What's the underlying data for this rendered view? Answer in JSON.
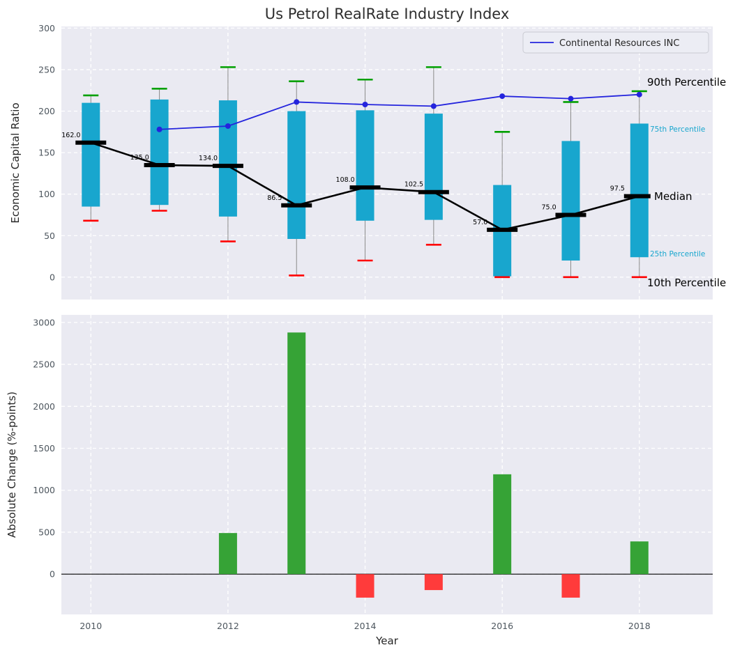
{
  "chart_data": [
    {
      "type": "box-line",
      "title": "Us Petrol RealRate Industry Index",
      "ylabel": "Economic Capital Ratio",
      "ylim": [
        -27,
        302
      ],
      "yticks": [
        0,
        50,
        100,
        150,
        200,
        250,
        300
      ],
      "xlim": [
        2009.57,
        2019.07
      ],
      "grid": true,
      "years": [
        2010,
        2011,
        2012,
        2013,
        2014,
        2015,
        2016,
        2017,
        2018
      ],
      "series": {
        "p90": [
          219,
          227,
          253,
          236,
          238,
          253,
          175,
          211,
          224
        ],
        "p75": [
          210,
          214,
          213,
          200,
          201,
          197,
          111,
          164,
          185
        ],
        "median": [
          162.0,
          135.0,
          134.0,
          86.5,
          108.0,
          102.5,
          57.0,
          75.0,
          97.5
        ],
        "p25": [
          85,
          87,
          73,
          46,
          68,
          69,
          1,
          20,
          24
        ],
        "p10": [
          68,
          80,
          43,
          2,
          20,
          39,
          0,
          0,
          0
        ]
      },
      "median_labels": [
        "162.0",
        "135.0",
        "134.0",
        "86.5",
        "108.0",
        "102.5",
        "57.0",
        "75.0",
        "97.5"
      ],
      "company": {
        "name": "Continental Resources INC",
        "years": [
          2011,
          2012,
          2013,
          2014,
          2015,
          2016,
          2017,
          2018
        ],
        "values": [
          178,
          182,
          211,
          208,
          206,
          218,
          215,
          220
        ]
      },
      "legend": {
        "label": "Continental Resources INC",
        "position": "upper right"
      },
      "annotations": [
        {
          "text": "90th Percentile",
          "color": "#000000",
          "y": 230
        },
        {
          "text": "75th Percentile",
          "color": "#18a6ce",
          "y": 185
        },
        {
          "text": "Median",
          "color": "#000000",
          "y": 97.5
        },
        {
          "text": "25th Percentile",
          "color": "#18a6ce",
          "y": 24
        },
        {
          "text": "10th Percentile",
          "color": "#000000",
          "y": 0
        }
      ],
      "colors": {
        "box": "#18a6ce",
        "cap_high": "#00a000",
        "cap_low": "#ff0000",
        "whisker": "#8a8a8a",
        "median": "#000000",
        "company": "#2424dd",
        "axes_background": "#eaeaf2"
      }
    },
    {
      "type": "bar",
      "ylabel": "Absolute Change (%-points)",
      "xlabel": "Year",
      "ylim": [
        -480,
        3090
      ],
      "yticks": [
        0,
        500,
        1000,
        1500,
        2000,
        2500,
        3000
      ],
      "xticks": [
        2010,
        2012,
        2014,
        2016,
        2018
      ],
      "years": [
        2010,
        2011,
        2012,
        2013,
        2014,
        2015,
        2016,
        2017,
        2018
      ],
      "values": [
        null,
        null,
        490,
        2880,
        -280,
        -190,
        1190,
        -280,
        390
      ],
      "colors": {
        "positive": "#36a336",
        "negative": "#ff3b3b"
      }
    }
  ]
}
